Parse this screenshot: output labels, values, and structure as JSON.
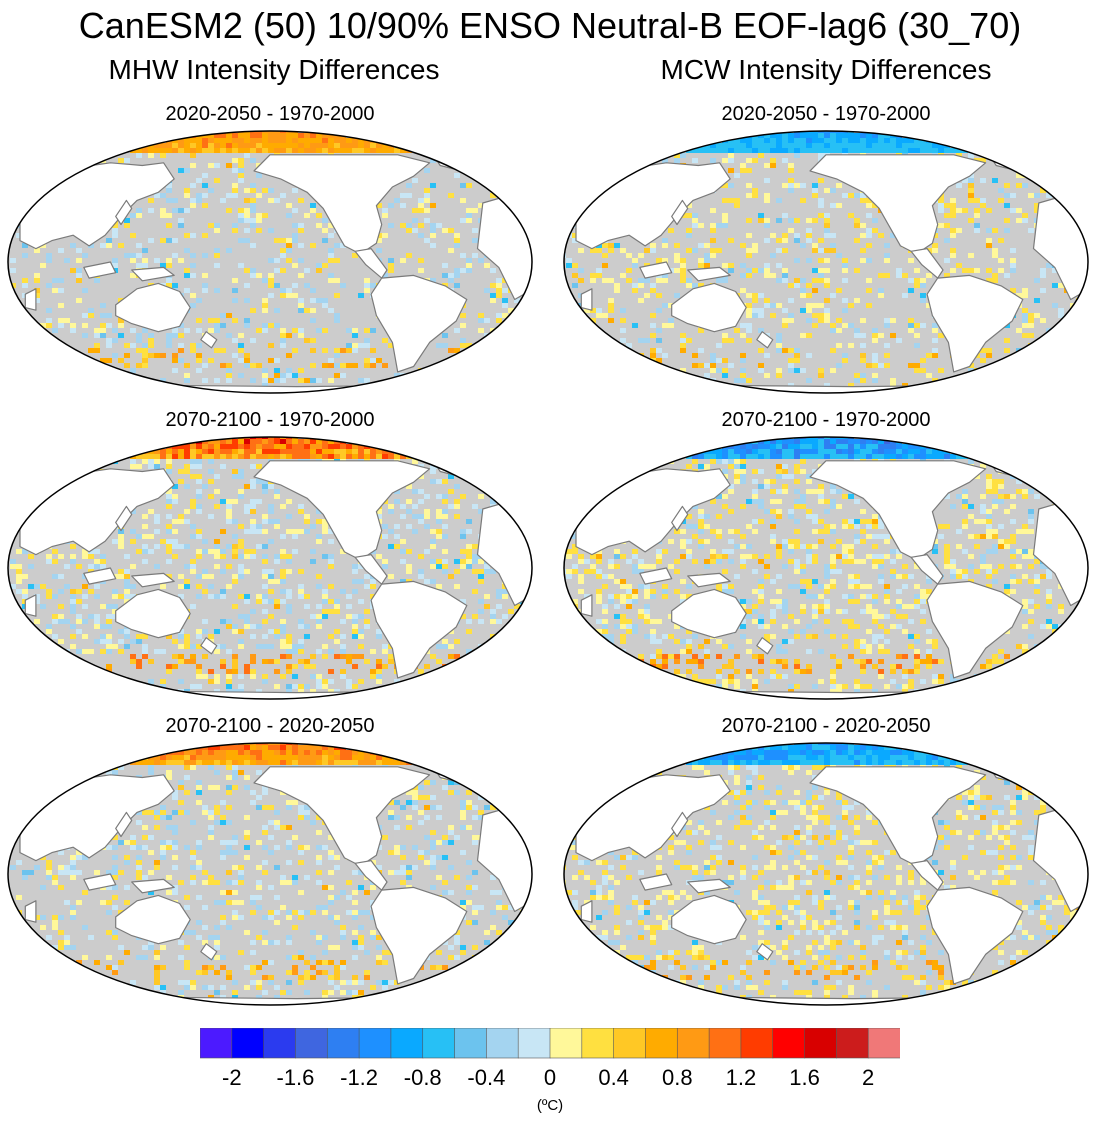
{
  "title": "CanESM2 (50) 10/90% ENSO Neutral-B EOF-lag6 (30_70)",
  "columns": [
    {
      "title": "MHW Intensity Differences"
    },
    {
      "title": "MCW Intensity Differences"
    }
  ],
  "panels": [
    {
      "label": "2020-2050 - 1970-2000",
      "column": "MHW",
      "arctic": "warm",
      "intensity": 0.6,
      "seed": 11
    },
    {
      "label": "2070-2100 - 1970-2000",
      "column": "MHW",
      "arctic": "warm",
      "intensity": 1.0,
      "seed": 23
    },
    {
      "label": "2070-2100 - 2020-2050",
      "column": "MHW",
      "arctic": "warm",
      "intensity": 0.7,
      "seed": 37
    },
    {
      "label": "2020-2050 - 1970-2000",
      "column": "MCW",
      "arctic": "cold",
      "intensity": 0.5,
      "seed": 41
    },
    {
      "label": "2070-2100 - 1970-2000",
      "column": "MCW",
      "arctic": "cold",
      "intensity": 1.0,
      "seed": 53
    },
    {
      "label": "2070-2100 - 2020-2050",
      "column": "MCW",
      "arctic": "cold",
      "intensity": 0.7,
      "seed": 67
    }
  ],
  "colorbar": {
    "colors": [
      "#4c1aff",
      "#0000ff",
      "#2b3bef",
      "#3f66e0",
      "#2e7ff2",
      "#1e90ff",
      "#0aa9ff",
      "#27c0f5",
      "#6cc3ee",
      "#a4d4f0",
      "#c8e6f5",
      "#fff89a",
      "#ffe040",
      "#ffc825",
      "#ffab00",
      "#ff9a14",
      "#ff7014",
      "#ff3c00",
      "#ff0000",
      "#d80000",
      "#cc1c1c",
      "#f07878"
    ],
    "ticks": [
      "-2",
      "-1.6",
      "-1.2",
      "-0.8",
      "-0.4",
      "0",
      "0.4",
      "0.8",
      "1.2",
      "1.6",
      "2"
    ],
    "units": "(ºC)"
  }
}
